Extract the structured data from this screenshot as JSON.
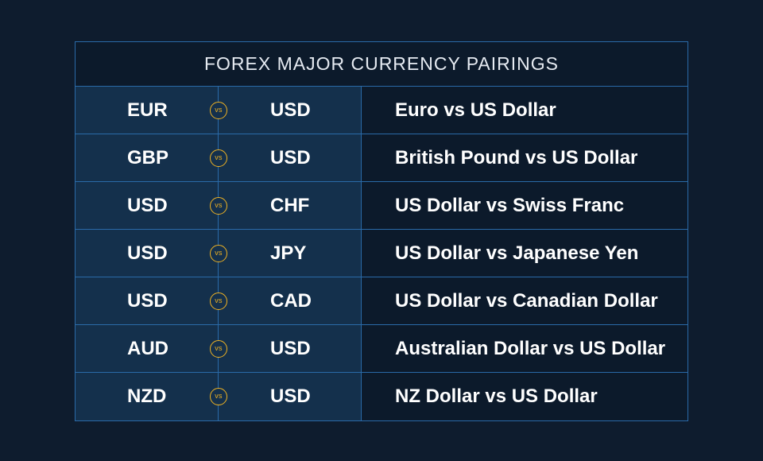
{
  "title": "FOREX MAJOR CURRENCY PAIRINGS",
  "vs_label": "vs",
  "pairs": [
    {
      "base": "EUR",
      "quote": "USD",
      "description": "Euro vs US Dollar"
    },
    {
      "base": "GBP",
      "quote": "USD",
      "description": "British Pound vs US Dollar"
    },
    {
      "base": "USD",
      "quote": "CHF",
      "description": "US Dollar vs Swiss Franc"
    },
    {
      "base": "USD",
      "quote": "JPY",
      "description": "US Dollar vs Japanese Yen"
    },
    {
      "base": "USD",
      "quote": "CAD",
      "description": "US Dollar vs Canadian Dollar"
    },
    {
      "base": "AUD",
      "quote": "USD",
      "description": "Australian Dollar vs US Dollar"
    },
    {
      "base": "NZD",
      "quote": "USD",
      "description": "NZ Dollar vs US Dollar"
    }
  ],
  "colors": {
    "background": "#0e1c2e",
    "left_panel": "#14304c",
    "right_panel": "#0c1a2b",
    "border": "#2a6aa8",
    "vs_accent": "#f0b323",
    "text": "#ffffff"
  }
}
